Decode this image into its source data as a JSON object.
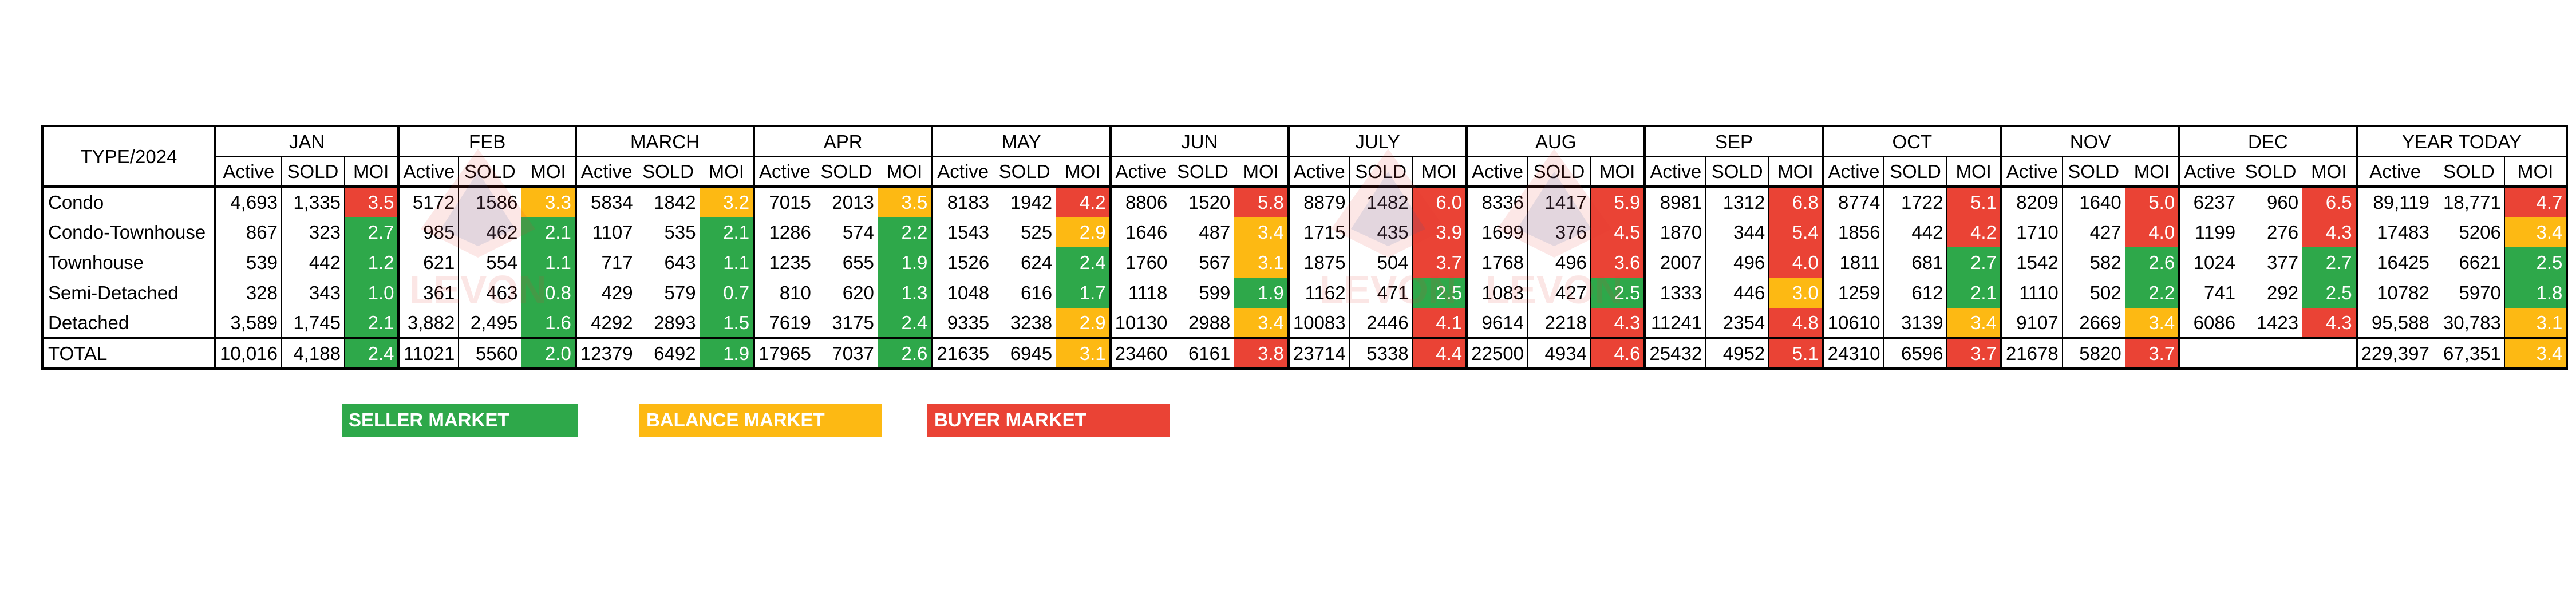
{
  "colors": {
    "seller": "#2EA84A",
    "balance": "#FDB913",
    "buyer": "#EA4335",
    "watermark_red": "#E53935",
    "watermark_blue": "#2F5AA8"
  },
  "table": {
    "type_header": "TYPE/2024",
    "sub_headers": [
      "Active",
      "SOLD",
      "MOI"
    ],
    "months": [
      {
        "label": "JAN"
      },
      {
        "label": "FEB"
      },
      {
        "label": "MARCH"
      },
      {
        "label": "APR"
      },
      {
        "label": "MAY"
      },
      {
        "label": "JUN"
      },
      {
        "label": "JULY"
      },
      {
        "label": "AUG"
      },
      {
        "label": "SEP"
      },
      {
        "label": "OCT"
      },
      {
        "label": "NOV"
      },
      {
        "label": "DEC"
      },
      {
        "label": "YEAR TODAY"
      }
    ],
    "rows": [
      {
        "type": "Condo",
        "cells": [
          [
            "4,693",
            "1,335",
            "3.5",
            "buyer"
          ],
          [
            "5172",
            "1586",
            "3.3",
            "balance"
          ],
          [
            "5834",
            "1842",
            "3.2",
            "balance"
          ],
          [
            "7015",
            "2013",
            "3.5",
            "balance"
          ],
          [
            "8183",
            "1942",
            "4.2",
            "buyer"
          ],
          [
            "8806",
            "1520",
            "5.8",
            "buyer"
          ],
          [
            "8879",
            "1482",
            "6.0",
            "buyer"
          ],
          [
            "8336",
            "1417",
            "5.9",
            "buyer"
          ],
          [
            "8981",
            "1312",
            "6.8",
            "buyer"
          ],
          [
            "8774",
            "1722",
            "5.1",
            "buyer"
          ],
          [
            "8209",
            "1640",
            "5.0",
            "buyer"
          ],
          [
            "6237",
            "960",
            "6.5",
            "buyer"
          ],
          [
            "89,119",
            "18,771",
            "4.7",
            "buyer"
          ]
        ]
      },
      {
        "type": "Condo-Townhouse",
        "cells": [
          [
            "867",
            "323",
            "2.7",
            "seller"
          ],
          [
            "985",
            "462",
            "2.1",
            "seller"
          ],
          [
            "1107",
            "535",
            "2.1",
            "seller"
          ],
          [
            "1286",
            "574",
            "2.2",
            "seller"
          ],
          [
            "1543",
            "525",
            "2.9",
            "balance"
          ],
          [
            "1646",
            "487",
            "3.4",
            "balance"
          ],
          [
            "1715",
            "435",
            "3.9",
            "buyer"
          ],
          [
            "1699",
            "376",
            "4.5",
            "buyer"
          ],
          [
            "1870",
            "344",
            "5.4",
            "buyer"
          ],
          [
            "1856",
            "442",
            "4.2",
            "buyer"
          ],
          [
            "1710",
            "427",
            "4.0",
            "buyer"
          ],
          [
            "1199",
            "276",
            "4.3",
            "buyer"
          ],
          [
            "17483",
            "5206",
            "3.4",
            "balance"
          ]
        ]
      },
      {
        "type": "Townhouse",
        "cells": [
          [
            "539",
            "442",
            "1.2",
            "seller"
          ],
          [
            "621",
            "554",
            "1.1",
            "seller"
          ],
          [
            "717",
            "643",
            "1.1",
            "seller"
          ],
          [
            "1235",
            "655",
            "1.9",
            "seller"
          ],
          [
            "1526",
            "624",
            "2.4",
            "seller"
          ],
          [
            "1760",
            "567",
            "3.1",
            "balance"
          ],
          [
            "1875",
            "504",
            "3.7",
            "buyer"
          ],
          [
            "1768",
            "496",
            "3.6",
            "buyer"
          ],
          [
            "2007",
            "496",
            "4.0",
            "buyer"
          ],
          [
            "1811",
            "681",
            "2.7",
            "seller"
          ],
          [
            "1542",
            "582",
            "2.6",
            "seller"
          ],
          [
            "1024",
            "377",
            "2.7",
            "seller"
          ],
          [
            "16425",
            "6621",
            "2.5",
            "seller"
          ]
        ]
      },
      {
        "type": "Semi-Detached",
        "cells": [
          [
            "328",
            "343",
            "1.0",
            "seller"
          ],
          [
            "361",
            "463",
            "0.8",
            "seller"
          ],
          [
            "429",
            "579",
            "0.7",
            "seller"
          ],
          [
            "810",
            "620",
            "1.3",
            "seller"
          ],
          [
            "1048",
            "616",
            "1.7",
            "seller"
          ],
          [
            "1118",
            "599",
            "1.9",
            "seller"
          ],
          [
            "1162",
            "471",
            "2.5",
            "seller"
          ],
          [
            "1083",
            "427",
            "2.5",
            "seller"
          ],
          [
            "1333",
            "446",
            "3.0",
            "balance"
          ],
          [
            "1259",
            "612",
            "2.1",
            "seller"
          ],
          [
            "1110",
            "502",
            "2.2",
            "seller"
          ],
          [
            "741",
            "292",
            "2.5",
            "seller"
          ],
          [
            "10782",
            "5970",
            "1.8",
            "seller"
          ]
        ]
      },
      {
        "type": "Detached",
        "cells": [
          [
            "3,589",
            "1,745",
            "2.1",
            "seller"
          ],
          [
            "3,882",
            "2,495",
            "1.6",
            "seller"
          ],
          [
            "4292",
            "2893",
            "1.5",
            "seller"
          ],
          [
            "7619",
            "3175",
            "2.4",
            "seller"
          ],
          [
            "9335",
            "3238",
            "2.9",
            "balance"
          ],
          [
            "10130",
            "2988",
            "3.4",
            "balance"
          ],
          [
            "10083",
            "2446",
            "4.1",
            "buyer"
          ],
          [
            "9614",
            "2218",
            "4.3",
            "buyer"
          ],
          [
            "11241",
            "2354",
            "4.8",
            "buyer"
          ],
          [
            "10610",
            "3139",
            "3.4",
            "balance"
          ],
          [
            "9107",
            "2669",
            "3.4",
            "balance"
          ],
          [
            "6086",
            "1423",
            "4.3",
            "buyer"
          ],
          [
            "95,588",
            "30,783",
            "3.1",
            "balance"
          ]
        ]
      }
    ],
    "total": {
      "type": "TOTAL",
      "cells": [
        [
          "10,016",
          "4,188",
          "2.4",
          "seller"
        ],
        [
          "11021",
          "5560",
          "2.0",
          "seller"
        ],
        [
          "12379",
          "6492",
          "1.9",
          "seller"
        ],
        [
          "17965",
          "7037",
          "2.6",
          "seller"
        ],
        [
          "21635",
          "6945",
          "3.1",
          "balance"
        ],
        [
          "23460",
          "6161",
          "3.8",
          "buyer"
        ],
        [
          "23714",
          "5338",
          "4.4",
          "buyer"
        ],
        [
          "22500",
          "4934",
          "4.6",
          "buyer"
        ],
        [
          "25432",
          "4952",
          "5.1",
          "buyer"
        ],
        [
          "24310",
          "6596",
          "3.7",
          "buyer"
        ],
        [
          "21678",
          "5820",
          "3.7",
          "buyer"
        ],
        [
          "",
          "",
          "",
          ""
        ],
        [
          "229,397",
          "67,351",
          "3.4",
          "balance"
        ]
      ]
    }
  },
  "legend": [
    {
      "label": "SELLER  MARKET",
      "status": "seller"
    },
    {
      "label": "BALANCE MARKET",
      "status": "balance"
    },
    {
      "label": "BUYER MARKET",
      "status": "buyer"
    }
  ],
  "watermark": {
    "text": "LEVON"
  }
}
